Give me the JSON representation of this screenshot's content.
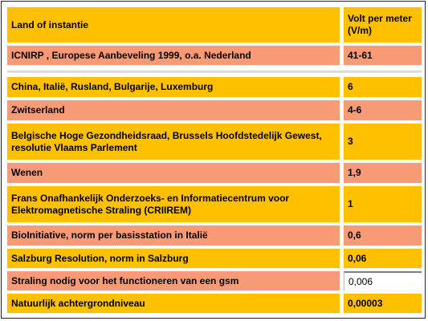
{
  "table": {
    "header": {
      "col1": "Land of instantie",
      "col2": "Volt per meter (V/m)"
    },
    "rows": [
      {
        "label": "ICNIRP , Europese Aanbeveling 1999,  o.a. Nederland",
        "value": "41-61"
      },
      {
        "label": "China, Italië, Rusland, Bulgarije, Luxemburg",
        "value": "6"
      },
      {
        "label": "Zwitserland",
        "value": "4-6"
      },
      {
        "label": "Belgische Hoge Gezondheidsraad, Brussels Hoofdstedelijk Gewest, resolutie Vlaams Parlement",
        "value": "3"
      },
      {
        "label": "Wenen",
        "value": "1,9"
      },
      {
        "label": "Frans Onafhankelijk Onderzoeks- en Informatiecentrum voor Elektromagnetische Straling (CRIIREM)",
        "value": "1"
      },
      {
        "label": "BioInitiative, norm per basisstation in Italië",
        "value": "0,6"
      },
      {
        "label": "Salzburg Resolution, norm in Salzburg",
        "value": "0,06"
      },
      {
        "label": "Straling nodig voor het functioneren van een gsm",
        "value": "0,006"
      },
      {
        "label": "Natuurlijk achtergrondniveau",
        "value": "0,00003"
      }
    ]
  },
  "colors": {
    "gold": "#ffc000",
    "salmon": "#f79b77",
    "white": "#ffffff"
  }
}
